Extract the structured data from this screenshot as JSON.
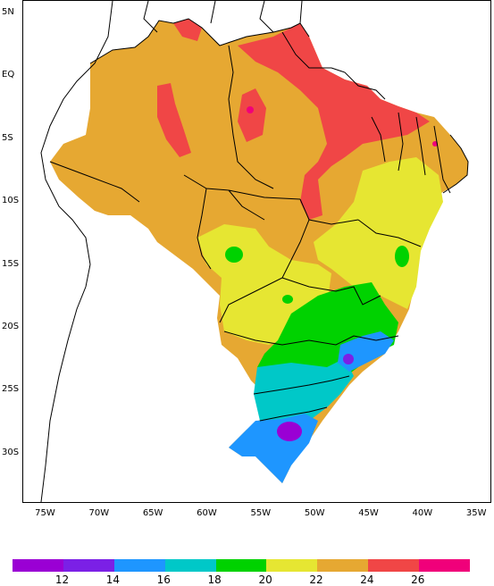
{
  "map": {
    "lat_labels": [
      {
        "text": "5N",
        "lat": 5
      },
      {
        "text": "EQ",
        "lat": 0
      },
      {
        "text": "5S",
        "lat": -5
      },
      {
        "text": "10S",
        "lat": -10
      },
      {
        "text": "15S",
        "lat": -15
      },
      {
        "text": "20S",
        "lat": -20
      },
      {
        "text": "25S",
        "lat": -25
      },
      {
        "text": "30S",
        "lat": -30
      }
    ],
    "lon_labels": [
      {
        "text": "75W",
        "lon": -75
      },
      {
        "text": "70W",
        "lon": -70
      },
      {
        "text": "65W",
        "lon": -65
      },
      {
        "text": "60W",
        "lon": -60
      },
      {
        "text": "55W",
        "lon": -55
      },
      {
        "text": "50W",
        "lon": -50
      },
      {
        "text": "45W",
        "lon": -45
      },
      {
        "text": "40W",
        "lon": -40
      },
      {
        "text": "35W",
        "lon": -35
      }
    ],
    "extent": {
      "lon_min": -77,
      "lon_max": -33.5,
      "lat_max": 6,
      "lat_min": -34
    }
  },
  "legend": {
    "colors": [
      "#9a00d4",
      "#7b20e6",
      "#1e96ff",
      "#00c8c8",
      "#00d200",
      "#e6e632",
      "#e6a832",
      "#f04646",
      "#f0007a"
    ],
    "labels": [
      "12",
      "14",
      "16",
      "18",
      "20",
      "22",
      "24",
      "26"
    ]
  },
  "fill_colors": {
    "c14": "#7b20e6",
    "c12": "#9a00d4",
    "c16": "#1e96ff",
    "c18": "#00c8c8",
    "c20": "#00d200",
    "c22": "#e6e632",
    "c24": "#e6a832",
    "c26": "#f04646",
    "c28": "#f0007a"
  }
}
